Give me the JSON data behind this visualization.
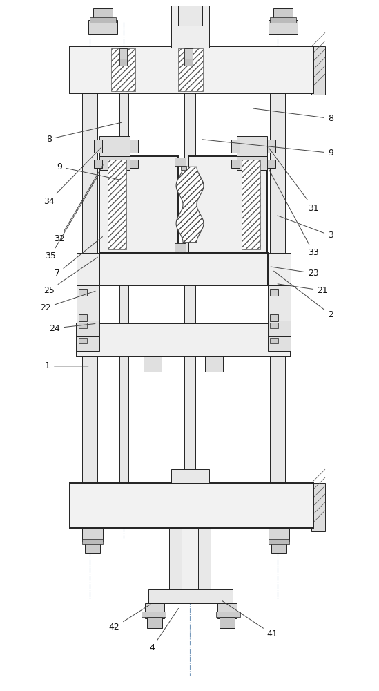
{
  "fig_width": 5.49,
  "fig_height": 10.0,
  "dpi": 100,
  "bg_color": "#ffffff",
  "lc": "#222222",
  "lc_light": "#888888",
  "fc_plate": "#f0f0f0",
  "fc_hatch": "#ffffff",
  "fc_rod": "#e8e8e8",
  "fc_nut": "#d8d8d8",
  "fc_mold": "#eeeeee"
}
